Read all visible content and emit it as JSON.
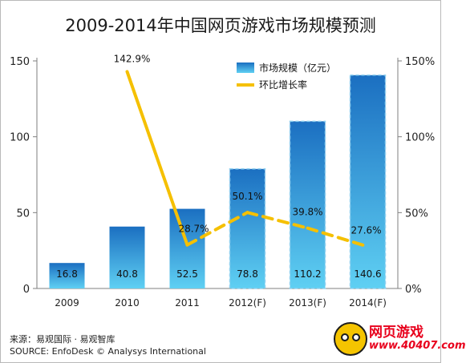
{
  "chart_data": {
    "type": "bar",
    "title": "2009-2014年中国网页游戏市场规模预测",
    "categories": [
      "2009",
      "2010",
      "2011",
      "2012(F)",
      "2013(F)",
      "2014(F)"
    ],
    "series": [
      {
        "name": "市场规模（亿元）",
        "type": "bar",
        "axis": "left",
        "values": [
          16.8,
          40.8,
          52.5,
          78.8,
          110.2,
          140.6
        ],
        "labels": [
          "16.8",
          "40.8",
          "52.5",
          "78.8",
          "110.2",
          "140.6"
        ],
        "forecast": [
          false,
          false,
          false,
          true,
          true,
          true
        ]
      },
      {
        "name": "环比增长率",
        "type": "line",
        "axis": "right",
        "values": [
          null,
          142.9,
          28.7,
          50.1,
          39.8,
          27.6
        ],
        "labels": [
          "",
          "142.9%",
          "28.7%",
          "50.1%",
          "39.8%",
          "27.6%"
        ],
        "forecast": [
          false,
          false,
          false,
          true,
          true,
          true
        ]
      }
    ],
    "y_left": {
      "min": 0,
      "max": 150,
      "ticks": [
        0,
        50,
        100,
        150
      ],
      "tick_labels": [
        "0",
        "50",
        "100",
        "150"
      ]
    },
    "y_right": {
      "min": 0,
      "max": 150,
      "ticks": [
        0,
        50,
        100,
        150
      ],
      "tick_labels": [
        "0%",
        "50%",
        "100%",
        "150%"
      ]
    },
    "grid": false,
    "legend_position": "top-right",
    "colors": {
      "bar_top": "#1b6fc1",
      "bar_bottom": "#5fd0f3",
      "line": "#f5c000",
      "axis": "#7f7f7f"
    }
  },
  "source": {
    "line1": "来源：易观国际 · 易观智库",
    "line2": "SOURCE: EnfoDesk © Analysys International"
  },
  "logo": {
    "text_cn": "网页游戏",
    "text_url": "www.40407.com"
  }
}
